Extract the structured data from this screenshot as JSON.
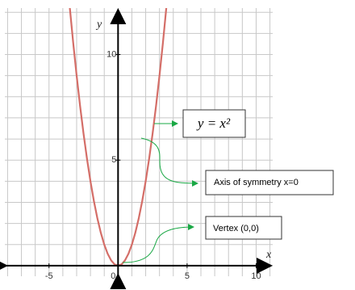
{
  "chart_data": {
    "type": "line",
    "x_label": "x",
    "y_label": "y",
    "xlim": [
      -8.2,
      11.2
    ],
    "ylim": [
      -0.5,
      12.2
    ],
    "xticks": [
      -5,
      0,
      5,
      10
    ],
    "yticks": [
      5,
      10
    ],
    "xgrid": [
      -8,
      -7,
      -6,
      -5,
      -4,
      -3,
      -2,
      -1,
      0,
      1,
      2,
      3,
      4,
      5,
      6,
      7,
      8,
      9,
      10,
      11
    ],
    "ygrid": [
      0,
      1,
      2,
      3,
      4,
      5,
      6,
      7,
      8,
      9,
      10,
      11,
      12
    ],
    "grid": true,
    "series": [
      {
        "color": "#d46e68",
        "x": [
          -3.5,
          -3.25,
          -3,
          -2.75,
          -2.5,
          -2.25,
          -2,
          -1.75,
          -1.5,
          -1.25,
          -1,
          -0.75,
          -0.5,
          -0.25,
          0,
          0.25,
          0.5,
          0.75,
          1,
          1.25,
          1.5,
          1.75,
          2,
          2.25,
          2.5,
          2.75,
          3,
          3.25,
          3.5
        ],
        "values": [
          12.25,
          10.5625,
          9,
          7.5625,
          6.25,
          5.0625,
          4,
          3.0625,
          2.25,
          1.5625,
          1,
          0.5625,
          0.25,
          0.0625,
          0,
          0.0625,
          0.25,
          0.5625,
          1,
          1.5625,
          2.25,
          3.0625,
          4,
          5.0625,
          6.25,
          7.5625,
          9,
          10.5625,
          12.25
        ]
      }
    ],
    "annotations": [
      "y = x²",
      "Axis of symmetry x=0",
      "Vertex (0,0)"
    ]
  }
}
